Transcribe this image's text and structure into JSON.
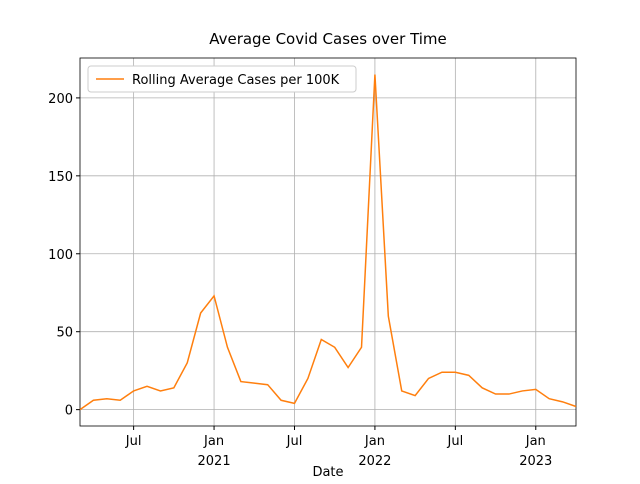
{
  "chart_data": {
    "type": "line",
    "title": "Average Covid Cases over Time",
    "xlabel": "Date",
    "x": [
      "2020-03",
      "2020-04",
      "2020-05",
      "2020-06",
      "2020-07",
      "2020-08",
      "2020-09",
      "2020-10",
      "2020-11",
      "2020-12",
      "2021-01",
      "2021-02",
      "2021-03",
      "2021-04",
      "2021-05",
      "2021-06",
      "2021-07",
      "2021-08",
      "2021-09",
      "2021-10",
      "2021-11",
      "2021-12",
      "2022-01",
      "2022-02",
      "2022-03",
      "2022-04",
      "2022-05",
      "2022-06",
      "2022-07",
      "2022-08",
      "2022-09",
      "2022-10",
      "2022-11",
      "2022-12",
      "2023-01",
      "2023-02",
      "2023-03",
      "2023-04"
    ],
    "series": [
      {
        "name": "Rolling Average Cases per 100K",
        "color": "#ff7f0e",
        "values": [
          0,
          6,
          7,
          6,
          12,
          15,
          12,
          14,
          30,
          62,
          73,
          40,
          18,
          17,
          16,
          6,
          4,
          20,
          45,
          40,
          27,
          40,
          215,
          60,
          12,
          9,
          20,
          24,
          24,
          22,
          14,
          10,
          10,
          12,
          13,
          7,
          5,
          2
        ]
      }
    ],
    "xlim": [
      "2020-03",
      "2023-04"
    ],
    "xticks": [
      {
        "value": "2020-07",
        "label": "Jul"
      },
      {
        "value": "2021-01",
        "label": "Jan",
        "year": "2021"
      },
      {
        "value": "2021-07",
        "label": "Jul"
      },
      {
        "value": "2022-01",
        "label": "Jan",
        "year": "2022"
      },
      {
        "value": "2022-07",
        "label": "Jul"
      },
      {
        "value": "2023-01",
        "label": "Jan",
        "year": "2023"
      }
    ],
    "ylim": [
      -10.5,
      225.6
    ],
    "yticks": [
      0,
      50,
      100,
      150,
      200
    ],
    "grid": true,
    "legend": "upper left"
  }
}
